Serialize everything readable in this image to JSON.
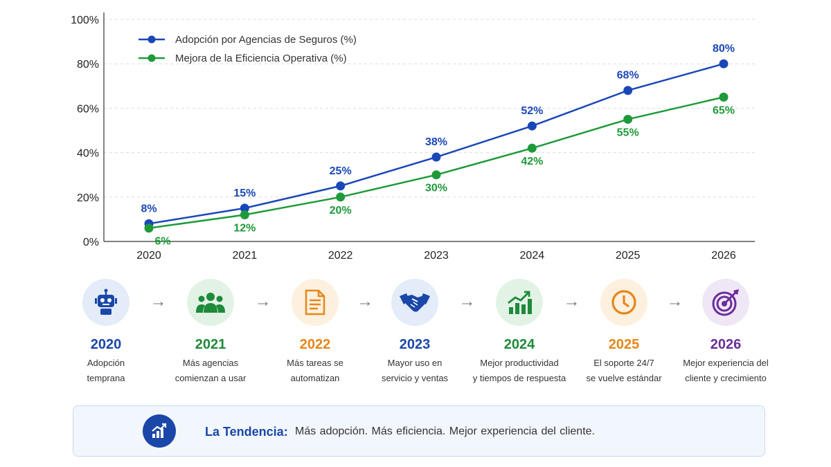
{
  "chart_data": {
    "type": "line",
    "x": [
      "2020",
      "2021",
      "2022",
      "2023",
      "2024",
      "2025",
      "2026"
    ],
    "series": [
      {
        "name": "Adopción por Agencias de Seguros (%)",
        "values": [
          8,
          15,
          25,
          38,
          52,
          68,
          80
        ],
        "color": "#1a47b8"
      },
      {
        "name": "Mejora de la Eficiencia Operativa (%)",
        "values": [
          6,
          12,
          20,
          30,
          42,
          55,
          65
        ],
        "color": "#1e9a3a"
      }
    ],
    "data_labels": [
      [
        "8%",
        "15%",
        "25%",
        "38%",
        "52%",
        "68%",
        "80%"
      ],
      [
        "6%",
        "12%",
        "20%",
        "30%",
        "42%",
        "55%",
        "65%"
      ]
    ],
    "y_ticks": [
      "0%",
      "20%",
      "40%",
      "60%",
      "80%",
      "100%"
    ],
    "ylim": [
      0,
      100
    ],
    "grid": true,
    "legend_position": "top-left"
  },
  "timeline": [
    {
      "year": "2020",
      "line1": "Adopción",
      "line2": "temprana",
      "icon": "robot-icon",
      "color": "#1a47a8",
      "bg": "#e3ecf8"
    },
    {
      "year": "2021",
      "line1": "Más agencias",
      "line2": "comienzan a usar",
      "icon": "people-icon",
      "color": "#1e8a3a",
      "bg": "#e2f3e5"
    },
    {
      "year": "2022",
      "line1": "Más tareas se",
      "line2": "automatizan",
      "icon": "document-icon",
      "color": "#e6861a",
      "bg": "#fdf0df"
    },
    {
      "year": "2023",
      "line1": "Mayor uso en",
      "line2": "servicio y ventas",
      "icon": "handshake-icon",
      "color": "#1a47a8",
      "bg": "#e3ecf8"
    },
    {
      "year": "2024",
      "line1": "Mejor productividad",
      "line2": "y tiempos de respuesta",
      "icon": "growth-chart-icon",
      "color": "#1e8a3a",
      "bg": "#e2f3e5"
    },
    {
      "year": "2025",
      "line1": "El soporte 24/7",
      "line2": "se vuelve estándar",
      "icon": "clock-icon",
      "color": "#e6861a",
      "bg": "#fdf0df"
    },
    {
      "year": "2026",
      "line1": "Mejor experiencia del",
      "line2": "cliente y crecimiento",
      "icon": "target-icon",
      "color": "#6a2c9a",
      "bg": "#efe6f6"
    }
  ],
  "trend": {
    "label": "La Tendencia:",
    "text": "Más adopción.  Más eficiencia.  Mejor experiencia del cliente.",
    "icon": "trend-chart-icon"
  }
}
